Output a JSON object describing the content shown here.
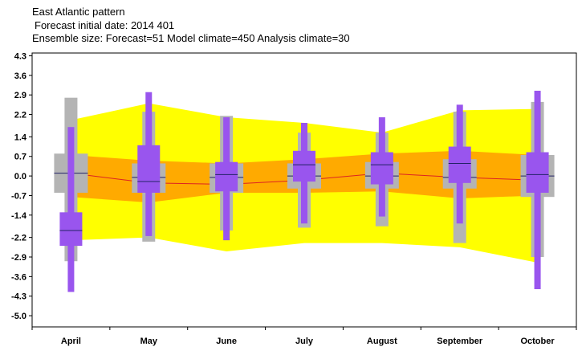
{
  "header": {
    "title": "East Atlantic pattern",
    "subtitle_date": "Forecast initial date: 2014 401",
    "subtitle_ensemble": "Ensemble size: Forecast=51 Model climate=450 Analysis climate=30"
  },
  "colors": {
    "outer_band": "#ffff00",
    "inner_band": "#ffaa00",
    "climate_box": "#b4b4b4",
    "forecast_box": "#9955ee",
    "mean_line": "#dd2222",
    "median_line": "#222266"
  },
  "chart_data": {
    "type": "box",
    "title": "East Atlantic pattern",
    "xlabel": "",
    "ylabel": "",
    "ylim": [
      -5.4,
      4.4
    ],
    "yticks": [
      4.3,
      3.6,
      2.9,
      2.2,
      1.4,
      0.7,
      0.0,
      -0.7,
      -1.4,
      -2.2,
      -2.9,
      -3.6,
      -4.3,
      -5.0
    ],
    "ytick_labels": [
      "4.3",
      "3.6",
      "2.9",
      "2.2",
      "1.4",
      "0.7",
      "0.0",
      "-0.7",
      "-1.4",
      "-2.2",
      "-2.9",
      "-3.6",
      "-4.3",
      "-5.0"
    ],
    "categories": [
      "April",
      "May",
      "June",
      "July",
      "August",
      "September",
      "October"
    ],
    "grid": false,
    "legend": "none",
    "climate_band_outer": {
      "upper": [
        2.0,
        2.6,
        2.1,
        1.9,
        1.55,
        2.35,
        2.4
      ],
      "lower": [
        -2.3,
        -2.2,
        -2.7,
        -2.4,
        -2.4,
        -2.55,
        -3.1
      ]
    },
    "climate_band_inner": {
      "upper": [
        0.75,
        0.55,
        0.45,
        0.6,
        0.8,
        0.9,
        0.75
      ],
      "lower": [
        -0.75,
        -0.95,
        -0.6,
        -0.6,
        -0.55,
        -0.8,
        -0.7
      ]
    },
    "climate_mean": [
      0.1,
      -0.25,
      -0.3,
      -0.15,
      0.1,
      -0.05,
      -0.15
    ],
    "model_climate": [
      {
        "min": -3.05,
        "q1": -0.6,
        "median": 0.1,
        "q3": 0.8,
        "max": 2.8
      },
      {
        "min": -2.35,
        "q1": -0.6,
        "median": -0.05,
        "q3": 0.45,
        "max": 2.3
      },
      {
        "min": -1.95,
        "q1": -0.6,
        "median": -0.05,
        "q3": 0.45,
        "max": 2.15
      },
      {
        "min": -1.85,
        "q1": -0.45,
        "median": 0.0,
        "q3": 0.45,
        "max": 1.55
      },
      {
        "min": -1.8,
        "q1": -0.45,
        "median": 0.0,
        "q3": 0.5,
        "max": 1.55
      },
      {
        "min": -2.4,
        "q1": -0.45,
        "median": -0.05,
        "q3": 0.6,
        "max": 2.3
      },
      {
        "min": -2.9,
        "q1": -0.75,
        "median": 0.0,
        "q3": 0.75,
        "max": 2.65
      }
    ],
    "forecast": [
      {
        "min": -4.15,
        "q1": -2.5,
        "median": -1.95,
        "q3": -1.3,
        "max": 1.75
      },
      {
        "min": -2.15,
        "q1": -0.6,
        "median": -0.2,
        "q3": 1.1,
        "max": 3.0
      },
      {
        "min": -2.3,
        "q1": -0.55,
        "median": 0.05,
        "q3": 0.5,
        "max": 2.1
      },
      {
        "min": -1.7,
        "q1": -0.2,
        "median": 0.4,
        "q3": 0.9,
        "max": 1.9
      },
      {
        "min": -1.45,
        "q1": -0.3,
        "median": 0.4,
        "q3": 0.85,
        "max": 2.1
      },
      {
        "min": -1.7,
        "q1": -0.25,
        "median": 0.45,
        "q3": 1.05,
        "max": 2.55
      },
      {
        "min": -4.05,
        "q1": -0.6,
        "median": 0.05,
        "q3": 0.85,
        "max": 3.05
      }
    ]
  }
}
